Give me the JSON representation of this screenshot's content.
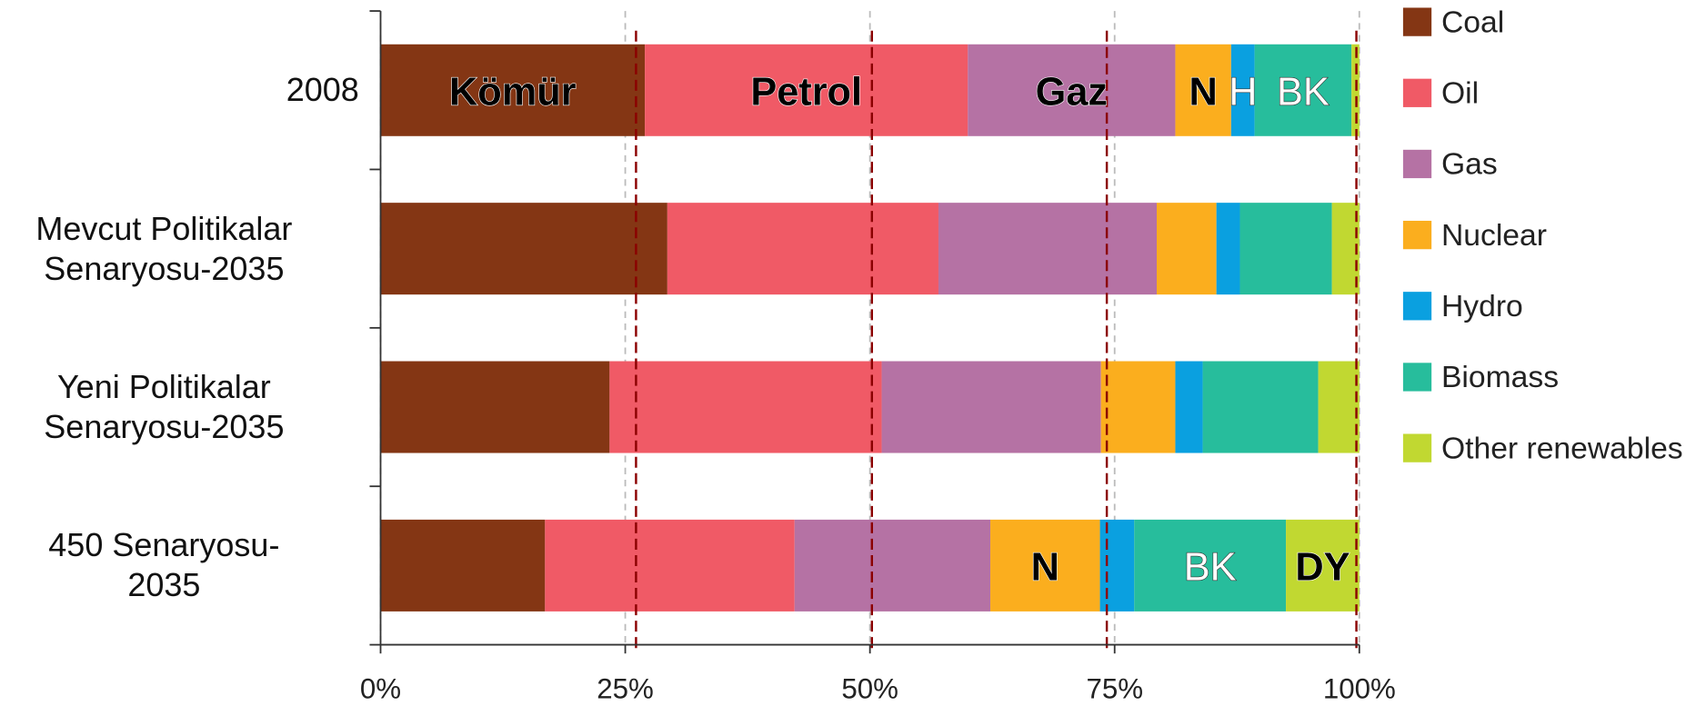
{
  "chart_data": {
    "type": "stacked_barh",
    "categories": [
      "2008",
      "Mevcut Politikalar\nSenaryosu-2035",
      "Yeni Politikalar\nSenaryosu-2035",
      "450 Senaryosu-\n2035"
    ],
    "series": [
      {
        "name": "Coal",
        "color": "#843614",
        "values": [
          27.0,
          29.3,
          23.4,
          16.8
        ]
      },
      {
        "name": "Oil",
        "color": "#f05a66",
        "values": [
          33.0,
          27.7,
          27.8,
          25.5
        ]
      },
      {
        "name": "Gas",
        "color": "#b572a4",
        "values": [
          21.2,
          22.3,
          22.4,
          20.0
        ]
      },
      {
        "name": "Nuclear",
        "color": "#fbae1e",
        "values": [
          5.7,
          6.1,
          7.6,
          11.2
        ]
      },
      {
        "name": "Hydro",
        "color": "#0aa0e0",
        "values": [
          2.4,
          2.4,
          2.8,
          3.5
        ]
      },
      {
        "name": "Biomass",
        "color": "#27bd9c",
        "values": [
          9.9,
          9.4,
          11.8,
          15.5
        ]
      },
      {
        "name": "Other renewables",
        "color": "#c1d831",
        "values": [
          0.8,
          2.8,
          4.2,
          7.5
        ]
      }
    ],
    "xlim": [
      0,
      100
    ],
    "xticks": [
      {
        "value": 0,
        "label": "0%"
      },
      {
        "value": 25,
        "label": "25%"
      },
      {
        "value": 50,
        "label": "50%"
      },
      {
        "value": 75,
        "label": "75%"
      },
      {
        "value": 100,
        "label": "100%"
      }
    ],
    "grid": true,
    "reference_lines": [
      26.1,
      50.2,
      74.2,
      99.7
    ],
    "annotations": [
      {
        "text": "Kömür",
        "category": 0,
        "series": 0,
        "color": "#000000"
      },
      {
        "text": "Petrol",
        "category": 0,
        "series": 1,
        "color": "#000000"
      },
      {
        "text": "Gaz",
        "category": 0,
        "series": 2,
        "color": "#000000"
      },
      {
        "text": "N",
        "category": 0,
        "series": 3,
        "color": "#000000"
      },
      {
        "text": "H",
        "category": 0,
        "series": 4,
        "color": "#ffffff"
      },
      {
        "text": "BK",
        "category": 0,
        "series": 5,
        "color": "#ffffff"
      },
      {
        "text": "N",
        "category": 3,
        "series": 3,
        "color": "#000000"
      },
      {
        "text": "BK",
        "category": 3,
        "series": 5,
        "color": "#ffffff"
      },
      {
        "text": "DY",
        "category": 3,
        "series": 6,
        "color": "#000000"
      }
    ],
    "legend": "right"
  }
}
